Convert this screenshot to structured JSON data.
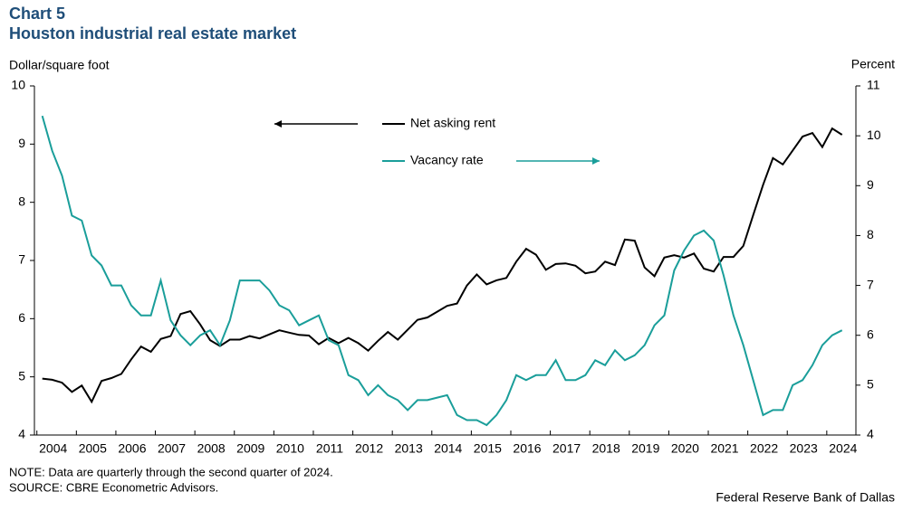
{
  "chart_data": {
    "type": "line",
    "title": "Chart 5",
    "subtitle": "Houston industrial real estate market",
    "y_label": "Dollar/square foot",
    "y2_label": "Percent",
    "note": "NOTE: Data are quarterly through the second quarter of 2024.",
    "source": "SOURCE: CBRE Econometric Advisors.",
    "credit": "Federal Reserve Bank of Dallas",
    "x": [
      2004,
      2004.25,
      2004.5,
      2004.75,
      2005,
      2005.25,
      2005.5,
      2005.75,
      2006,
      2006.25,
      2006.5,
      2006.75,
      2007,
      2007.25,
      2007.5,
      2007.75,
      2008,
      2008.25,
      2008.5,
      2008.75,
      2009,
      2009.25,
      2009.5,
      2009.75,
      2010,
      2010.25,
      2010.5,
      2010.75,
      2011,
      2011.25,
      2011.5,
      2011.75,
      2012,
      2012.25,
      2012.5,
      2012.75,
      2013,
      2013.25,
      2013.5,
      2013.75,
      2014,
      2014.25,
      2014.5,
      2014.75,
      2015,
      2015.25,
      2015.5,
      2015.75,
      2016,
      2016.25,
      2016.5,
      2016.75,
      2017,
      2017.25,
      2017.5,
      2017.75,
      2018,
      2018.25,
      2018.5,
      2018.75,
      2019,
      2019.25,
      2019.5,
      2019.75,
      2020,
      2020.25,
      2020.5,
      2020.75,
      2021,
      2021.25,
      2021.5,
      2021.75,
      2022,
      2022.25,
      2022.5,
      2022.75,
      2023,
      2023.25,
      2023.5,
      2023.75,
      2024,
      2024.25
    ],
    "xlim": [
      2003.8,
      2024.6
    ],
    "xticks": [
      2004,
      2005,
      2006,
      2007,
      2008,
      2009,
      2010,
      2011,
      2012,
      2013,
      2014,
      2015,
      2016,
      2017,
      2018,
      2019,
      2020,
      2021,
      2022,
      2023,
      2024
    ],
    "ylim": [
      4,
      10
    ],
    "yticks": [
      4,
      5,
      6,
      7,
      8,
      9,
      10
    ],
    "y2lim": [
      4,
      11
    ],
    "y2ticks": [
      4,
      5,
      6,
      7,
      8,
      9,
      10,
      11
    ],
    "series": [
      {
        "name": "Net asking rent",
        "color": "#000000",
        "axis": "y",
        "values": [
          4.97,
          4.95,
          4.9,
          4.74,
          4.85,
          4.57,
          4.93,
          4.98,
          5.05,
          5.3,
          5.52,
          5.43,
          5.65,
          5.7,
          6.08,
          6.13,
          5.9,
          5.63,
          5.53,
          5.64,
          5.64,
          5.7,
          5.66,
          5.73,
          5.8,
          5.76,
          5.72,
          5.71,
          5.56,
          5.67,
          5.58,
          5.67,
          5.58,
          5.45,
          5.62,
          5.77,
          5.64,
          5.81,
          5.98,
          6.02,
          6.12,
          6.22,
          6.26,
          6.57,
          6.76,
          6.59,
          6.66,
          6.7,
          6.98,
          7.2,
          7.1,
          6.84,
          6.94,
          6.95,
          6.91,
          6.78,
          6.81,
          6.98,
          6.92,
          7.36,
          7.34,
          6.88,
          6.73,
          7.05,
          7.09,
          7.05,
          7.12,
          6.86,
          6.81,
          7.06,
          7.06,
          7.25,
          7.78,
          8.3,
          8.76,
          8.65,
          8.89,
          9.13,
          9.19,
          8.95,
          9.27,
          9.16
        ]
      },
      {
        "name": "Vacancy rate",
        "color": "#1a9e9a",
        "axis": "y2",
        "values": [
          10.4,
          9.7,
          9.2,
          8.4,
          8.3,
          7.6,
          7.4,
          7.0,
          7.0,
          6.6,
          6.4,
          6.4,
          7.1,
          6.3,
          6.0,
          5.8,
          6.0,
          6.1,
          5.8,
          6.3,
          7.1,
          7.1,
          7.1,
          6.9,
          6.6,
          6.5,
          6.2,
          6.3,
          6.4,
          5.9,
          5.8,
          5.2,
          5.1,
          4.8,
          5.0,
          4.8,
          4.7,
          4.5,
          4.7,
          4.7,
          4.75,
          4.8,
          4.4,
          4.3,
          4.3,
          4.2,
          4.4,
          4.7,
          5.2,
          5.1,
          5.2,
          5.2,
          5.5,
          5.1,
          5.1,
          5.2,
          5.5,
          5.4,
          5.7,
          5.5,
          5.6,
          5.8,
          6.2,
          6.4,
          7.3,
          7.7,
          8.0,
          8.1,
          7.9,
          7.2,
          6.4,
          5.8,
          5.1,
          4.4,
          4.5,
          4.5,
          5.0,
          5.1,
          5.4,
          5.8,
          6.0,
          6.1
        ]
      }
    ]
  }
}
